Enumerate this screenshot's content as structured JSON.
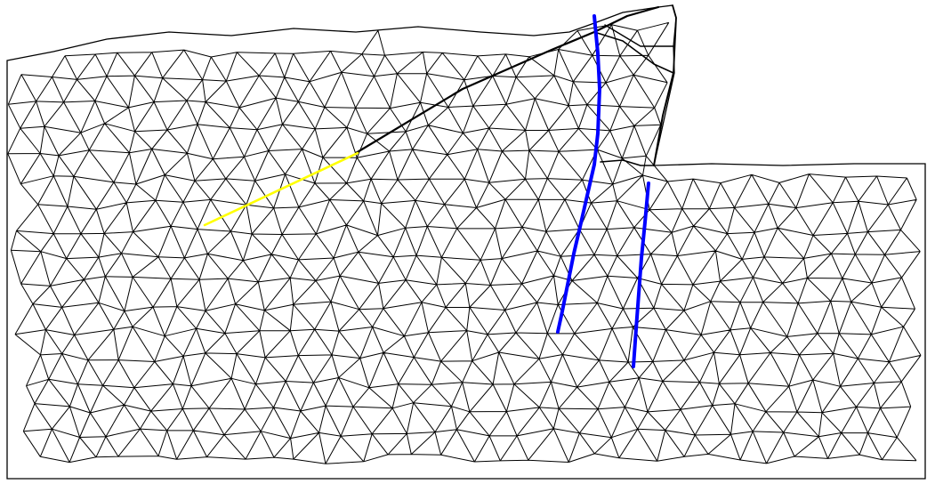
{
  "figure": {
    "background_color": "#ffffff",
    "mesh_color": "#000000",
    "mesh_elements": "triangular",
    "reinforcement_lines": [
      {
        "name": "blue-reinforcement-1",
        "color": "#0000ff"
      },
      {
        "name": "blue-reinforcement-2",
        "color": "#0000ff"
      },
      {
        "name": "yellow-anchor-segment",
        "color": "#ffff00"
      }
    ],
    "slope_crack": {
      "color": "#000000"
    }
  }
}
